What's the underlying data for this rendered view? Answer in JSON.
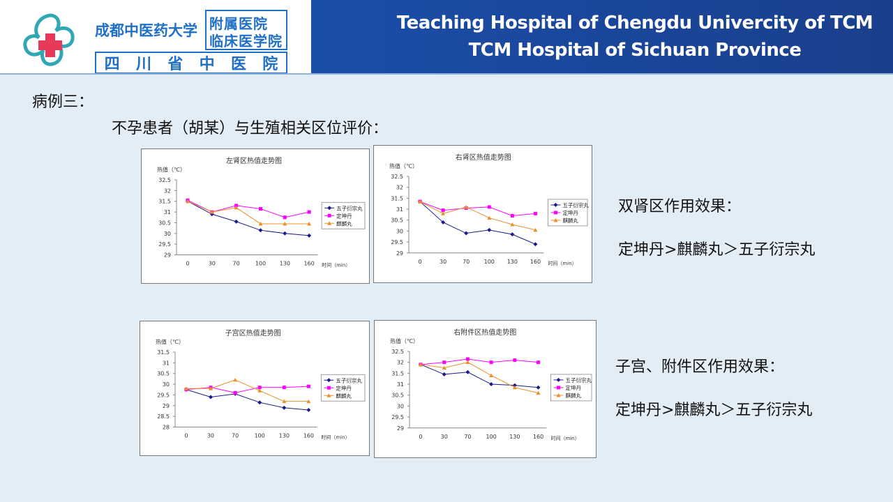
{
  "header": {
    "university": "成都中医药大学",
    "affiliated_line1": "附属医院",
    "affiliated_line2": "临床医学院",
    "province_hospital_chars": [
      "四",
      "川",
      "省",
      "中",
      "医",
      "院"
    ],
    "title_en_1": "Teaching Hospital of Chengdu Univercity of TCM",
    "title_en_2": "TCM Hospital of Sichuan Province"
  },
  "case_title": "病例三：",
  "subtitle": "不孕患者（胡某）与生殖相关区位评价：",
  "effects": {
    "kidney_label": "双肾区作用效果：",
    "kidney_result": "定坤丹>麒麟丸＞五子衍宗丸",
    "uterus_label": "子宫、附件区作用效果：",
    "uterus_result": "定坤丹>麒麟丸＞五子衍宗丸"
  },
  "colors": {
    "header_bar": "#1b4ea9",
    "series_wuzi": "#1a1a8c",
    "series_dingkun": "#ff00ff",
    "series_qilin": "#e8902a"
  },
  "chart_data": [
    {
      "type": "line",
      "title": "左肾区热值走势图",
      "ylabel": "热值（℃）",
      "xlabel": "时间（min）",
      "categories": [
        "0",
        "30",
        "70",
        "100",
        "130",
        "160"
      ],
      "ylim": [
        29,
        32.5
      ],
      "yticks": [
        "29",
        "29.5",
        "30",
        "30.5",
        "31",
        "31.5",
        "32",
        "32.5"
      ],
      "series": [
        {
          "name": "五子衍宗丸",
          "values": [
            31.5,
            30.9,
            30.55,
            30.15,
            30.0,
            29.9
          ]
        },
        {
          "name": "定坤丹",
          "values": [
            31.55,
            31.0,
            31.3,
            31.15,
            30.75,
            31.0
          ]
        },
        {
          "name": "麒麟丸",
          "values": [
            31.5,
            31.0,
            31.2,
            30.45,
            30.45,
            30.45
          ]
        }
      ]
    },
    {
      "type": "line",
      "title": "右肾区热值走势图",
      "ylabel": "热值（℃）",
      "xlabel": "时间（min）",
      "categories": [
        "0",
        "30",
        "70",
        "100",
        "130",
        "160"
      ],
      "ylim": [
        29,
        32.5
      ],
      "yticks": [
        "29",
        "29.5",
        "30",
        "30.5",
        "31",
        "31.5",
        "32",
        "32.5"
      ],
      "series": [
        {
          "name": "五子衍宗丸",
          "values": [
            31.35,
            30.4,
            29.9,
            30.05,
            29.85,
            29.4
          ]
        },
        {
          "name": "定坤丹",
          "values": [
            31.35,
            30.95,
            31.05,
            31.1,
            30.7,
            30.8
          ]
        },
        {
          "name": "麒麟丸",
          "values": [
            31.35,
            30.8,
            31.1,
            30.6,
            30.3,
            30.05
          ]
        }
      ]
    },
    {
      "type": "line",
      "title": "子宫区热值走势图",
      "ylabel": "热值（℃）",
      "xlabel": "时间（min）",
      "categories": [
        "0",
        "30",
        "70",
        "100",
        "130",
        "160"
      ],
      "ylim": [
        28,
        31.5
      ],
      "yticks": [
        "28",
        "28.5",
        "29",
        "29.5",
        "30",
        "30.5",
        "31",
        "31.5"
      ],
      "series": [
        {
          "name": "五子衍宗丸",
          "values": [
            29.75,
            29.4,
            29.55,
            29.15,
            28.9,
            28.8
          ]
        },
        {
          "name": "定坤丹",
          "values": [
            29.75,
            29.85,
            29.6,
            29.85,
            29.85,
            29.9
          ]
        },
        {
          "name": "麒麟丸",
          "values": [
            29.8,
            29.8,
            30.2,
            29.7,
            29.2,
            29.2
          ]
        }
      ]
    },
    {
      "type": "line",
      "title": "右附件区热值走势图",
      "ylabel": "热值（℃）",
      "xlabel": "时间（min）",
      "categories": [
        "0",
        "30",
        "70",
        "100",
        "130",
        "160"
      ],
      "ylim": [
        29,
        32.5
      ],
      "yticks": [
        "29",
        "29.5",
        "30",
        "30.5",
        "31",
        "31.5",
        "32",
        "32.5"
      ],
      "series": [
        {
          "name": "五子衍宗丸",
          "values": [
            31.9,
            31.45,
            31.55,
            31.0,
            30.95,
            30.85
          ]
        },
        {
          "name": "定坤丹",
          "values": [
            31.9,
            32.0,
            32.15,
            32.0,
            32.1,
            32.0
          ]
        },
        {
          "name": "麒麟丸",
          "values": [
            31.9,
            31.75,
            32.0,
            31.4,
            30.85,
            30.6
          ]
        }
      ]
    }
  ]
}
